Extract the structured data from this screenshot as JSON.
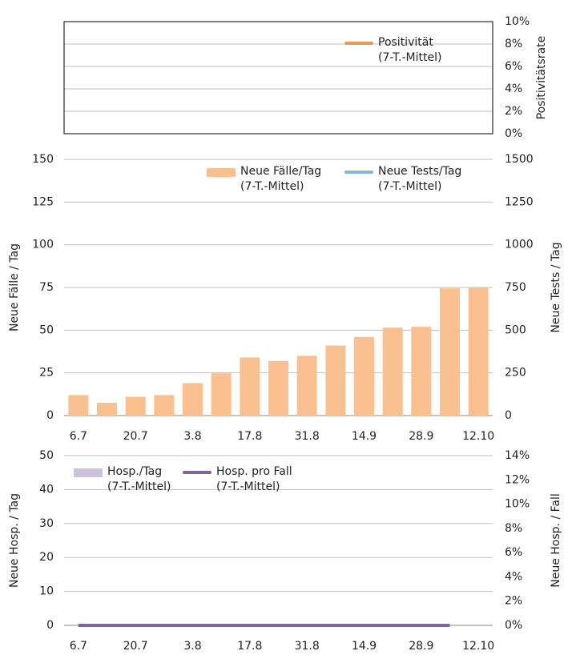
{
  "chart_data": [
    {
      "type": "line",
      "ylabel": "Positivitätsrate",
      "y2lim": [
        0,
        10
      ],
      "y2ticks": [
        {
          "value": 0,
          "label": "0%"
        },
        {
          "value": 2,
          "label": "2%"
        },
        {
          "value": 4,
          "label": "4%"
        },
        {
          "value": 6,
          "label": "6%"
        },
        {
          "value": 8,
          "label": "8%"
        },
        {
          "value": 10,
          "label": "10%"
        }
      ],
      "series": [
        {
          "name": "Positivität\n(7-T.-Mittel)",
          "color": "#e59a57",
          "kind": "line",
          "axis": "y2",
          "values": []
        }
      ],
      "grid": true,
      "border": true
    },
    {
      "type": "bar",
      "ylabel": "Neue Fälle / Tag",
      "y2label": "Neue Tests / Tag",
      "categories": [
        "6.7",
        null,
        "20.7",
        null,
        "3.8",
        null,
        "17.8",
        null,
        "31.8",
        null,
        "14.9",
        null,
        "28.9",
        null,
        "12.10"
      ],
      "ylim": [
        0,
        150
      ],
      "yticks": [
        0,
        25,
        50,
        75,
        100,
        125,
        150
      ],
      "y2lim": [
        0,
        1500
      ],
      "y2ticks": [
        0,
        250,
        500,
        750,
        1000,
        1250,
        1500
      ],
      "series": [
        {
          "name": "Neue Fälle/Tag\n(7-T.-Mittel)",
          "color": "#fac090",
          "kind": "bar",
          "values": [
            12,
            7.5,
            11,
            12,
            19,
            25,
            34,
            32,
            35,
            41,
            46,
            51.5,
            52,
            74.5,
            75
          ]
        },
        {
          "name": "Neue Tests/Tag\n(7-T.-Mittel)",
          "color": "#8db3e2",
          "kind": "line",
          "axis": "y2",
          "values": [
            null,
            null,
            null,
            null,
            null,
            null,
            null,
            null,
            null,
            null,
            null,
            null,
            null,
            null,
            null
          ]
        }
      ],
      "grid": true
    },
    {
      "type": "bar",
      "ylabel": "Neue Hosp. / Tag",
      "y2label": "Neue Hosp. / Fall",
      "categories": [
        "6.7",
        null,
        "20.7",
        null,
        "3.8",
        null,
        "17.8",
        null,
        "31.8",
        null,
        "14.9",
        null,
        "28.9",
        null,
        "12.10"
      ],
      "ylim": [
        0,
        50
      ],
      "yticks": [
        0,
        10,
        20,
        30,
        40,
        50
      ],
      "y2lim": [
        0,
        14
      ],
      "y2ticks": [
        {
          "value": 0,
          "label": "0%"
        },
        {
          "value": 2,
          "label": "2%"
        },
        {
          "value": 4,
          "label": "4%"
        },
        {
          "value": 6,
          "label": "6%"
        },
        {
          "value": 8,
          "label": "8%"
        },
        {
          "value": 10,
          "label": "10%"
        },
        {
          "value": 12,
          "label": "12%"
        },
        {
          "value": 14,
          "label": "14%"
        }
      ],
      "series": [
        {
          "name": "Hosp./Tag\n(7-T.-Mittel)",
          "color": "#ccc0da",
          "kind": "bar",
          "values": [
            0,
            0,
            0,
            0,
            0,
            0,
            0,
            0,
            0,
            0,
            0,
            0,
            0,
            0,
            0
          ]
        },
        {
          "name": "Hosp. pro Fall\n(7-T.-Mittel)",
          "color": "#8064a2",
          "kind": "line",
          "axis": "y2",
          "values": [
            0,
            0,
            0,
            0,
            0,
            0,
            0,
            0,
            0,
            0,
            0,
            0,
            0,
            0,
            null
          ]
        }
      ],
      "grid": true
    }
  ]
}
